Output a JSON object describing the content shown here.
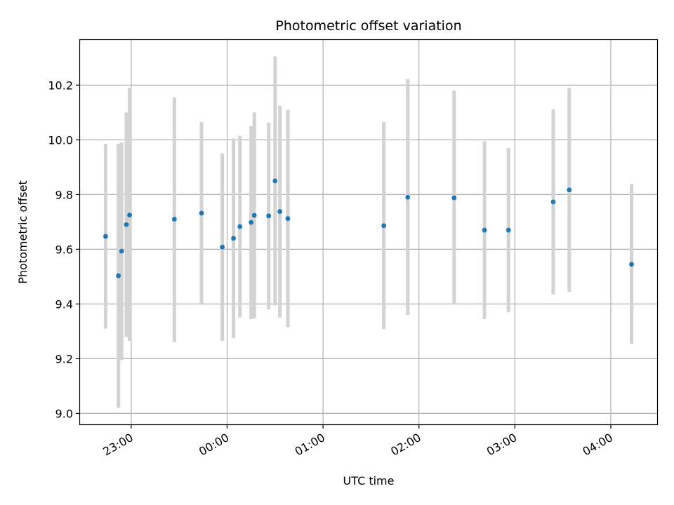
{
  "chart_data": {
    "type": "scatter",
    "title": "Photometric offset variation",
    "xlabel": "UTC time",
    "ylabel": "Photometric offset",
    "x_reference_date": "",
    "xlim": [
      "22:28",
      "04:29"
    ],
    "ylim": [
      8.96,
      10.365
    ],
    "x_ticks": [
      "23:00",
      "00:00",
      "01:00",
      "02:00",
      "03:00",
      "04:00"
    ],
    "y_ticks": [
      9.0,
      9.2,
      9.4,
      9.6,
      9.8,
      10.0,
      10.2
    ],
    "y_tick_labels": [
      "9.0",
      "9.2",
      "9.4",
      "9.6",
      "9.8",
      "10.0",
      "10.2"
    ],
    "grid": true,
    "colors": {
      "points": "#1f77b4",
      "errorbars": "#d3d3d3",
      "grid": "#b0b0b0"
    },
    "points": [
      {
        "x": "22:44",
        "y": 9.647,
        "ylow": 9.31,
        "yhigh": 9.985
      },
      {
        "x": "22:52",
        "y": 9.503,
        "ylow": 9.02,
        "yhigh": 9.985
      },
      {
        "x": "22:54",
        "y": 9.593,
        "ylow": 9.195,
        "yhigh": 9.99
      },
      {
        "x": "22:57",
        "y": 9.69,
        "ylow": 9.28,
        "yhigh": 10.1
      },
      {
        "x": "22:59",
        "y": 9.725,
        "ylow": 9.265,
        "yhigh": 10.19
      },
      {
        "x": "23:27",
        "y": 9.71,
        "ylow": 9.26,
        "yhigh": 10.155
      },
      {
        "x": "23:44",
        "y": 9.732,
        "ylow": 9.4,
        "yhigh": 10.065
      },
      {
        "x": "23:57",
        "y": 9.608,
        "ylow": 9.265,
        "yhigh": 9.95
      },
      {
        "x": "00:04",
        "y": 9.64,
        "ylow": 9.275,
        "yhigh": 10.005
      },
      {
        "x": "00:08",
        "y": 9.683,
        "ylow": 9.35,
        "yhigh": 10.015
      },
      {
        "x": "00:15",
        "y": 9.698,
        "ylow": 9.345,
        "yhigh": 10.05
      },
      {
        "x": "00:17",
        "y": 9.724,
        "ylow": 9.348,
        "yhigh": 10.1
      },
      {
        "x": "00:26",
        "y": 9.722,
        "ylow": 9.38,
        "yhigh": 10.062
      },
      {
        "x": "00:30",
        "y": 9.85,
        "ylow": 9.395,
        "yhigh": 10.305
      },
      {
        "x": "00:33",
        "y": 9.738,
        "ylow": 9.35,
        "yhigh": 10.125
      },
      {
        "x": "00:38",
        "y": 9.712,
        "ylow": 9.315,
        "yhigh": 10.11
      },
      {
        "x": "01:38",
        "y": 9.686,
        "ylow": 9.308,
        "yhigh": 10.065
      },
      {
        "x": "01:53",
        "y": 9.79,
        "ylow": 9.36,
        "yhigh": 10.222
      },
      {
        "x": "02:22",
        "y": 9.788,
        "ylow": 9.4,
        "yhigh": 10.18
      },
      {
        "x": "02:41",
        "y": 9.67,
        "ylow": 9.345,
        "yhigh": 9.995
      },
      {
        "x": "02:56",
        "y": 9.67,
        "ylow": 9.37,
        "yhigh": 9.97
      },
      {
        "x": "03:24",
        "y": 9.773,
        "ylow": 9.435,
        "yhigh": 10.112
      },
      {
        "x": "03:34",
        "y": 9.817,
        "ylow": 9.445,
        "yhigh": 10.19
      },
      {
        "x": "04:13",
        "y": 9.545,
        "ylow": 9.255,
        "yhigh": 9.838
      }
    ]
  }
}
